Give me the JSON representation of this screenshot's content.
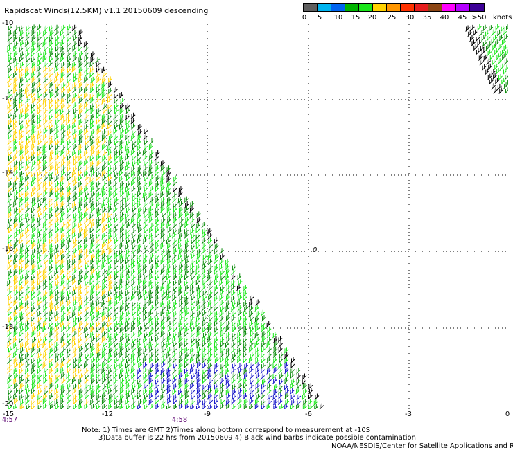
{
  "title": "Rapidscat Winds(12.5KM) v1.1 20150609 descending",
  "colorbar": {
    "boxes": [
      "#5f5f5f",
      "#00b4f0",
      "#0064f0",
      "#00b400",
      "#1ae61a",
      "#ffd200",
      "#ff9600",
      "#ff3200",
      "#e61e1e",
      "#8b4513",
      "#ff00ff",
      "#b400ff",
      "#3c0096"
    ],
    "labels": [
      "0",
      "5",
      "10",
      "15",
      "20",
      "25",
      "30",
      "35",
      "40",
      "45",
      ">50"
    ],
    "unit": "knots"
  },
  "axes": {
    "y_labels": [
      "-10",
      "-12",
      "-14",
      "-16",
      "-18",
      "-20"
    ],
    "x_labels": [
      "-15",
      "-12",
      "-9",
      "-6",
      "-3",
      "0"
    ],
    "times": [
      "4:57",
      "4:58"
    ]
  },
  "map": {
    "grid": "dotted",
    "center_mark": "0",
    "barb_colors": {
      "light": "#1ae61a",
      "dark": "#0a8a0a",
      "yellow": "#ffd200",
      "blue": "#1414c8",
      "contaminated": "#000000"
    }
  },
  "notes": {
    "line1": "Note: 1) Times are GMT 2)Times along bottom correspond to measurement at -10S",
    "line2": "3)Data buffer is 22 hrs from 20150609 4) Black wind barbs indicate possible contamination",
    "credit": "NOAA/NESDIS/Center for Satellite Applications and Resea"
  }
}
